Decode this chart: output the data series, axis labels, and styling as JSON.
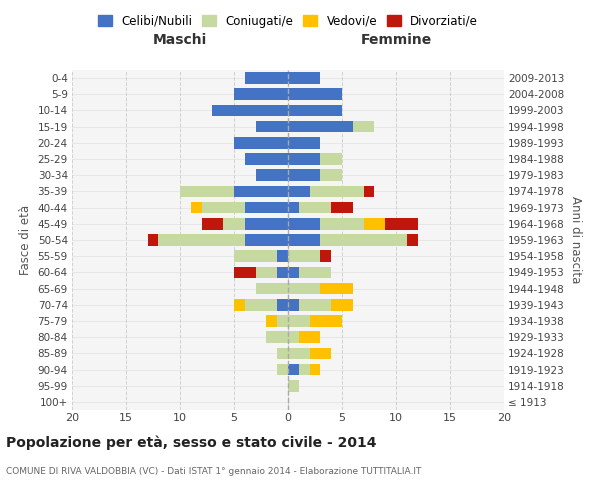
{
  "age_groups": [
    "100+",
    "95-99",
    "90-94",
    "85-89",
    "80-84",
    "75-79",
    "70-74",
    "65-69",
    "60-64",
    "55-59",
    "50-54",
    "45-49",
    "40-44",
    "35-39",
    "30-34",
    "25-29",
    "20-24",
    "15-19",
    "10-14",
    "5-9",
    "0-4"
  ],
  "birth_years": [
    "≤ 1913",
    "1914-1918",
    "1919-1923",
    "1924-1928",
    "1929-1933",
    "1934-1938",
    "1939-1943",
    "1944-1948",
    "1949-1953",
    "1954-1958",
    "1959-1963",
    "1964-1968",
    "1969-1973",
    "1974-1978",
    "1979-1983",
    "1984-1988",
    "1989-1993",
    "1994-1998",
    "1999-2003",
    "2004-2008",
    "2009-2013"
  ],
  "males_celibi": [
    0,
    0,
    0,
    0,
    0,
    0,
    1,
    0,
    1,
    1,
    4,
    4,
    4,
    5,
    3,
    4,
    5,
    3,
    7,
    5,
    4
  ],
  "males_coniugati": [
    0,
    0,
    1,
    1,
    2,
    1,
    3,
    3,
    2,
    4,
    8,
    2,
    4,
    5,
    0,
    0,
    0,
    0,
    0,
    0,
    0
  ],
  "males_vedovi": [
    0,
    0,
    0,
    0,
    0,
    1,
    1,
    0,
    0,
    0,
    0,
    0,
    1,
    0,
    0,
    0,
    0,
    0,
    0,
    0,
    0
  ],
  "males_divorziati": [
    0,
    0,
    0,
    0,
    0,
    0,
    0,
    0,
    2,
    0,
    1,
    2,
    0,
    0,
    0,
    0,
    0,
    0,
    0,
    0,
    0
  ],
  "females_nubili": [
    0,
    0,
    1,
    0,
    0,
    0,
    1,
    0,
    1,
    0,
    3,
    3,
    1,
    2,
    3,
    3,
    3,
    6,
    5,
    5,
    3
  ],
  "females_coniugate": [
    0,
    1,
    1,
    2,
    1,
    2,
    3,
    3,
    3,
    3,
    8,
    4,
    3,
    5,
    2,
    2,
    0,
    2,
    0,
    0,
    0
  ],
  "females_vedove": [
    0,
    0,
    1,
    2,
    2,
    3,
    2,
    3,
    0,
    0,
    0,
    2,
    0,
    0,
    0,
    0,
    0,
    0,
    0,
    0,
    0
  ],
  "females_divorziate": [
    0,
    0,
    0,
    0,
    0,
    0,
    0,
    0,
    0,
    1,
    1,
    3,
    2,
    1,
    0,
    0,
    0,
    0,
    0,
    0,
    0
  ],
  "color_celibi": "#4472c4",
  "color_coniugati": "#c5d9a0",
  "color_vedovi": "#ffc000",
  "color_divorziati": "#c0170c",
  "title": "Popolazione per età, sesso e stato civile - 2014",
  "subtitle": "COMUNE DI RIVA VALDOBBIA (VC) - Dati ISTAT 1° gennaio 2014 - Elaborazione TUTTITALIA.IT",
  "label_maschi": "Maschi",
  "label_femmine": "Femmine",
  "ylabel_left": "Fasce di età",
  "ylabel_right": "Anni di nascita",
  "xlim": 20,
  "xticks": [
    -20,
    -15,
    -10,
    -5,
    0,
    5,
    10,
    15,
    20
  ],
  "xtick_labels": [
    "20",
    "15",
    "10",
    "5",
    "0",
    "5",
    "10",
    "15",
    "20"
  ],
  "bg_plot": "#f5f5f5",
  "grid_color": "#cccccc",
  "legend_labels": [
    "Celibi/Nubili",
    "Coniugati/e",
    "Vedovi/e",
    "Divorziati/e"
  ]
}
